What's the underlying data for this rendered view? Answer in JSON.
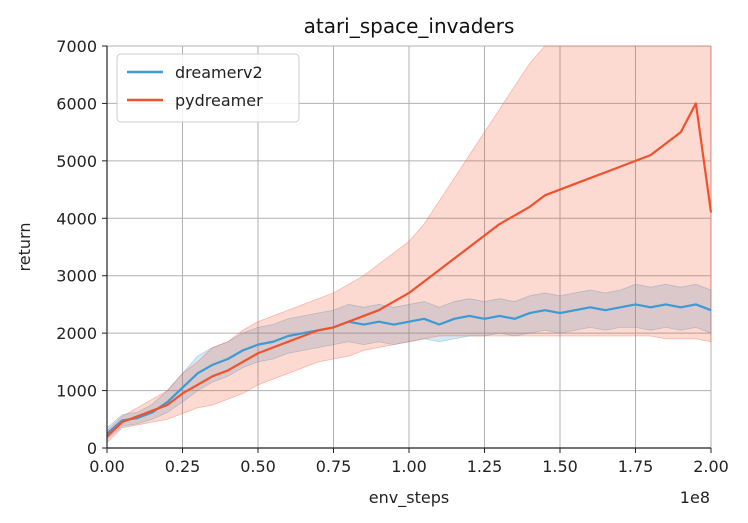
{
  "chart_data": {
    "type": "line",
    "title": "atari_space_invaders",
    "xlabel": "env_steps",
    "ylabel": "return",
    "x_offset_label": "1e8",
    "xlim": [
      0,
      2.0
    ],
    "ylim": [
      0,
      7000
    ],
    "x_ticks": [
      0,
      0.25,
      0.5,
      0.75,
      1.0,
      1.25,
      1.5,
      1.75,
      2.0
    ],
    "x_tick_labels": [
      "0.00",
      "0.25",
      "0.50",
      "0.75",
      "1.00",
      "1.25",
      "1.50",
      "1.75",
      "2.00"
    ],
    "y_ticks": [
      0,
      1000,
      2000,
      3000,
      4000,
      5000,
      6000,
      7000
    ],
    "y_tick_labels": [
      "0",
      "1000",
      "2000",
      "3000",
      "4000",
      "5000",
      "6000",
      "7000"
    ],
    "grid": true,
    "legend_position": "top-left",
    "series": [
      {
        "name": "dreamerv2",
        "color": "#3a9bd5",
        "x": [
          0.0,
          0.05,
          0.1,
          0.15,
          0.2,
          0.25,
          0.3,
          0.35,
          0.4,
          0.45,
          0.5,
          0.55,
          0.6,
          0.65,
          0.7,
          0.75,
          0.8,
          0.85,
          0.9,
          0.95,
          1.0,
          1.05,
          1.1,
          1.15,
          1.2,
          1.25,
          1.3,
          1.35,
          1.4,
          1.45,
          1.5,
          1.55,
          1.6,
          1.65,
          1.7,
          1.75,
          1.8,
          1.85,
          1.9,
          1.95,
          2.0
        ],
        "y": [
          250,
          480,
          520,
          620,
          800,
          1050,
          1300,
          1450,
          1550,
          1700,
          1800,
          1850,
          1950,
          2000,
          2050,
          2100,
          2200,
          2150,
          2200,
          2150,
          2200,
          2250,
          2150,
          2250,
          2300,
          2250,
          2300,
          2250,
          2350,
          2400,
          2350,
          2400,
          2450,
          2400,
          2450,
          2500,
          2450,
          2500,
          2450,
          2500,
          2400
        ],
        "lower": [
          150,
          380,
          420,
          500,
          620,
          800,
          1000,
          1150,
          1250,
          1400,
          1500,
          1550,
          1650,
          1700,
          1750,
          1800,
          1850,
          1800,
          1850,
          1800,
          1850,
          1900,
          1850,
          1900,
          1950,
          1950,
          2000,
          1950,
          2000,
          2050,
          2000,
          2050,
          2100,
          2050,
          2100,
          2100,
          2050,
          2100,
          2050,
          2100,
          2000
        ],
        "upper": [
          350,
          580,
          620,
          760,
          1000,
          1300,
          1600,
          1750,
          1850,
          2000,
          2100,
          2150,
          2250,
          2300,
          2350,
          2400,
          2500,
          2450,
          2500,
          2450,
          2500,
          2550,
          2450,
          2550,
          2600,
          2550,
          2600,
          2550,
          2650,
          2700,
          2650,
          2700,
          2750,
          2700,
          2750,
          2850,
          2800,
          2850,
          2800,
          2850,
          2750
        ]
      },
      {
        "name": "pydreamer",
        "color": "#f0522d",
        "x": [
          0.0,
          0.05,
          0.1,
          0.15,
          0.2,
          0.25,
          0.3,
          0.35,
          0.4,
          0.45,
          0.5,
          0.55,
          0.6,
          0.65,
          0.7,
          0.75,
          0.8,
          0.85,
          0.9,
          0.95,
          1.0,
          1.05,
          1.1,
          1.15,
          1.2,
          1.25,
          1.3,
          1.35,
          1.4,
          1.45,
          1.5,
          1.55,
          1.6,
          1.65,
          1.7,
          1.75,
          1.8,
          1.85,
          1.9,
          1.95,
          2.0
        ],
        "y": [
          200,
          450,
          550,
          650,
          750,
          950,
          1100,
          1250,
          1350,
          1500,
          1650,
          1750,
          1850,
          1950,
          2050,
          2100,
          2200,
          2300,
          2400,
          2550,
          2700,
          2900,
          3100,
          3300,
          3500,
          3700,
          3900,
          4050,
          4200,
          4400,
          4500,
          4600,
          4700,
          4800,
          4900,
          5000,
          5100,
          5300,
          5500,
          6000,
          4100
        ],
        "lower": [
          100,
          350,
          400,
          450,
          500,
          600,
          700,
          750,
          850,
          950,
          1100,
          1200,
          1300,
          1400,
          1500,
          1550,
          1600,
          1700,
          1750,
          1800,
          1850,
          1900,
          1950,
          1950,
          1950,
          1950,
          1950,
          1950,
          1950,
          1950,
          1950,
          1950,
          1950,
          1950,
          1950,
          1950,
          1950,
          1900,
          1900,
          1900,
          1850
        ],
        "upper": [
          300,
          550,
          700,
          850,
          1000,
          1300,
          1500,
          1750,
          1850,
          2050,
          2200,
          2300,
          2400,
          2500,
          2600,
          2700,
          2850,
          3000,
          3200,
          3400,
          3600,
          3900,
          4300,
          4700,
          5100,
          5500,
          5900,
          6300,
          6700,
          7000,
          7000,
          7000,
          7000,
          7000,
          7000,
          7000,
          7000,
          7000,
          7000,
          7000,
          7000
        ]
      }
    ]
  }
}
